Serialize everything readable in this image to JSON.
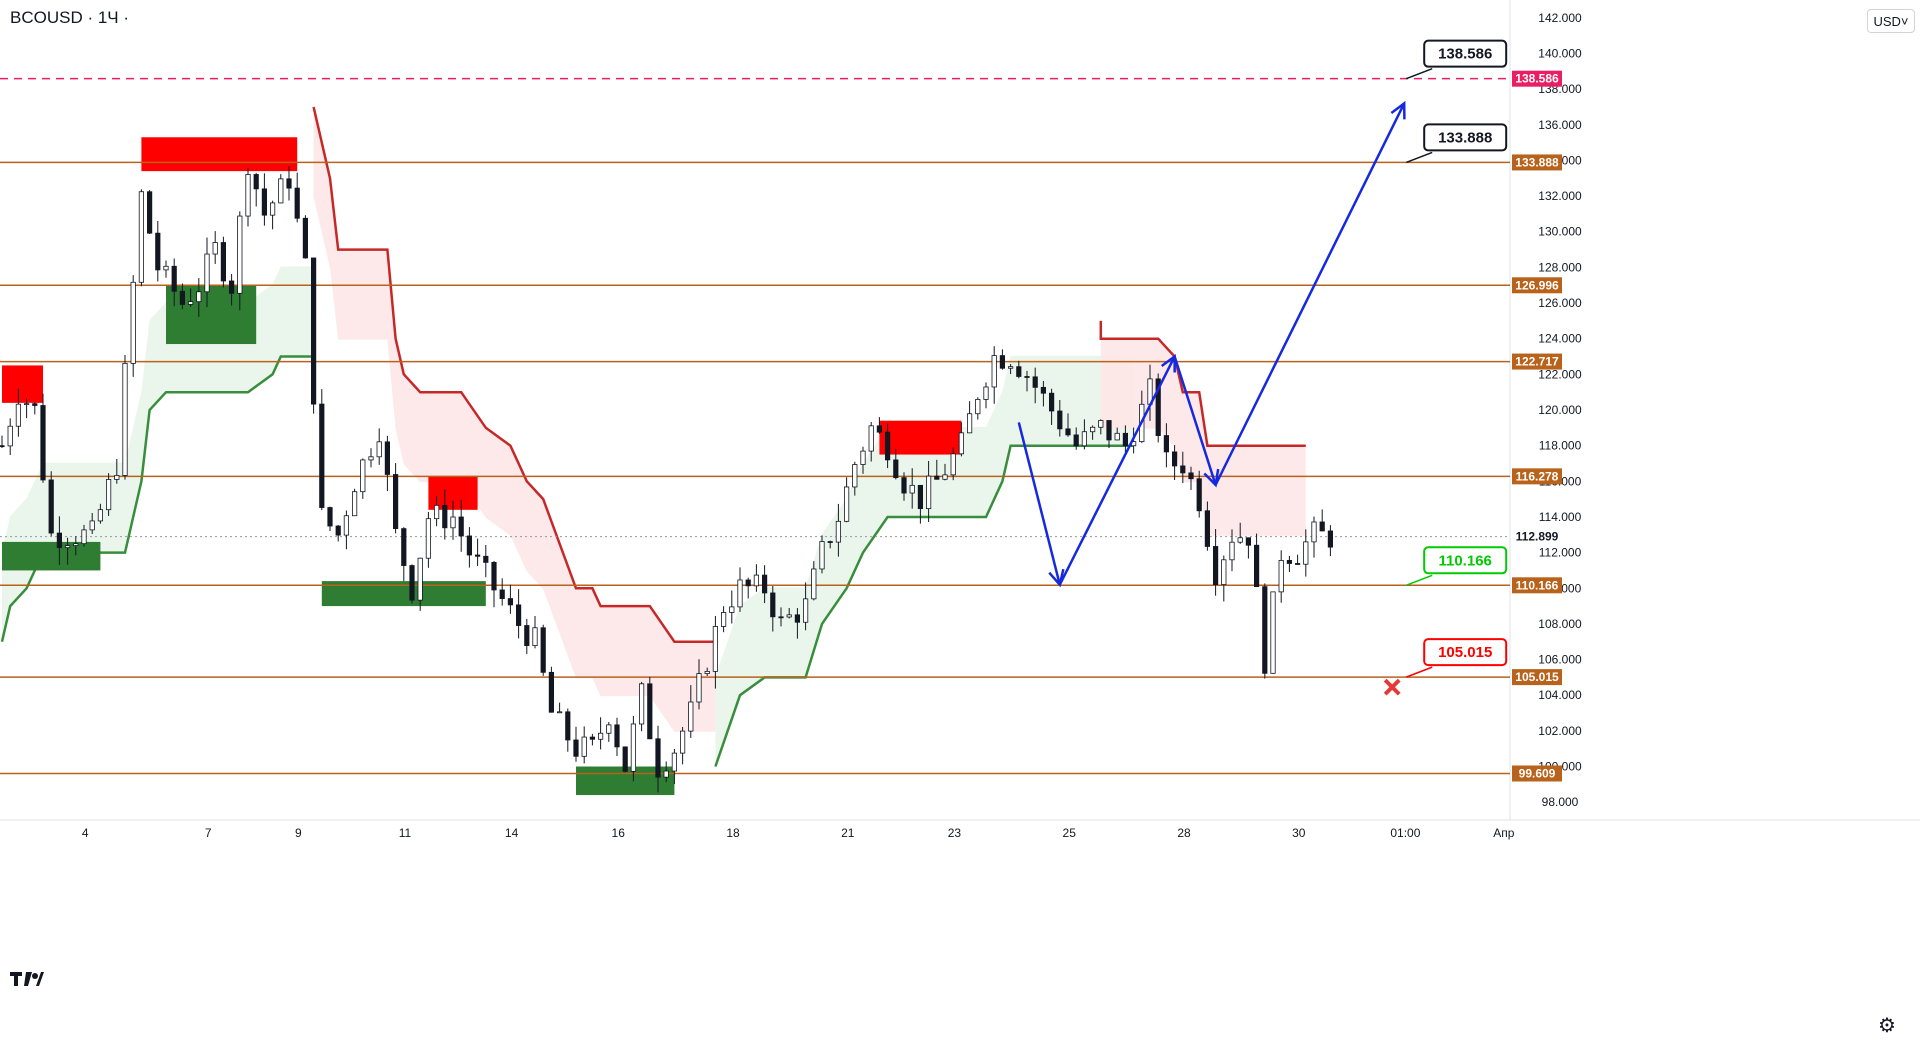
{
  "header": {
    "symbol_title": "BCOUSD · 1Ч ·",
    "currency_label": "USD˅"
  },
  "footer": {
    "settings_icon": "gear-icon",
    "logo_icon": "tradingview-logo-icon"
  },
  "chart_data": {
    "type": "candlestick",
    "symbol": "BCOUSD",
    "interval": "1Ч",
    "ylim": [
      97,
      143
    ],
    "y_ticks": [
      98,
      100,
      102,
      104,
      106,
      108,
      110,
      112,
      114,
      116,
      118,
      120,
      122,
      124,
      126,
      128,
      130,
      132,
      134,
      136,
      138,
      140,
      142
    ],
    "x_ticks": [
      "4",
      "7",
      "9",
      "11",
      "14",
      "16",
      "18",
      "21",
      "23",
      "25",
      "28",
      "30",
      "01:00",
      "Апр"
    ],
    "x_tick_index": [
      11,
      26,
      37,
      50,
      63,
      76,
      90,
      104,
      117,
      131,
      145,
      159,
      172,
      184
    ],
    "bar_count": 180,
    "last_price": "112.899",
    "last_price_value": 112.899,
    "horizontal_levels": [
      {
        "value": 99.609,
        "label": "99.609"
      },
      {
        "value": 105.015,
        "label": "105.015"
      },
      {
        "value": 110.166,
        "label": "110.166"
      },
      {
        "value": 116.278,
        "label": "116.278"
      },
      {
        "value": 122.717,
        "label": "122.717"
      },
      {
        "value": 126.996,
        "label": "126.996"
      },
      {
        "value": 133.888,
        "label": "133.888"
      }
    ],
    "resistance_target": {
      "value": 138.586,
      "label": "138.586"
    },
    "callouts": [
      {
        "label": "138.586",
        "value": 138.586,
        "color": "#131722",
        "x_index": 171
      },
      {
        "label": "133.888",
        "value": 133.888,
        "color": "#131722",
        "x_index": 171
      },
      {
        "label": "110.166",
        "value": 110.166,
        "color": "#00cc00",
        "x_index": 171
      },
      {
        "label": "105.015",
        "value": 105.015,
        "color": "#ff0000",
        "x_index": 171
      }
    ],
    "forecast_path": [
      {
        "x_index": 124,
        "value": 119.3
      },
      {
        "x_index": 129,
        "value": 110.2
      },
      {
        "x_index": 143,
        "value": 123.0
      },
      {
        "x_index": 148,
        "value": 115.8
      },
      {
        "x_index": 171,
        "value": 137.2
      }
    ],
    "zones": [
      {
        "type": "supply",
        "x0": 0,
        "x1": 5,
        "y0": 120.4,
        "y1": 122.5
      },
      {
        "type": "demand",
        "x0": 0,
        "x1": 12,
        "y0": 111.0,
        "y1": 112.6
      },
      {
        "type": "supply",
        "x0": 17,
        "x1": 36,
        "y0": 133.4,
        "y1": 135.3
      },
      {
        "type": "demand",
        "x0": 20,
        "x1": 31,
        "y0": 123.7,
        "y1": 127.0
      },
      {
        "type": "supply",
        "x0": 52,
        "x1": 58,
        "y0": 114.4,
        "y1": 116.3
      },
      {
        "type": "demand",
        "x0": 39,
        "x1": 59,
        "y0": 109.0,
        "y1": 110.4
      },
      {
        "type": "demand",
        "x0": 70,
        "x1": 82,
        "y0": 98.4,
        "y1": 100.0
      },
      {
        "type": "supply",
        "x0": 107,
        "x1": 117,
        "y0": 117.5,
        "y1": 119.4
      }
    ],
    "trend_stops": [
      {
        "color": "#388e3c",
        "fill": "#e8f5e9",
        "points": [
          [
            0,
            107
          ],
          [
            1,
            109
          ],
          [
            3,
            110
          ],
          [
            5,
            112
          ],
          [
            8,
            112
          ],
          [
            12,
            112
          ],
          [
            15,
            112
          ],
          [
            17,
            116
          ],
          [
            18,
            120
          ],
          [
            20,
            121
          ],
          [
            24,
            121
          ],
          [
            28,
            121
          ],
          [
            30,
            121
          ],
          [
            33,
            122
          ],
          [
            34,
            123
          ],
          [
            38,
            123
          ]
        ]
      },
      {
        "color": "#c62828",
        "fill": "#fde7e7",
        "points": [
          [
            38,
            137
          ],
          [
            40,
            133
          ],
          [
            41,
            129
          ],
          [
            43,
            129
          ],
          [
            47,
            129
          ],
          [
            48,
            124
          ],
          [
            49,
            122
          ],
          [
            51,
            121
          ],
          [
            56,
            121
          ],
          [
            59,
            119
          ],
          [
            62,
            118
          ],
          [
            64,
            116
          ],
          [
            66,
            115
          ],
          [
            70,
            110
          ],
          [
            72,
            110
          ],
          [
            73,
            109
          ],
          [
            79,
            109
          ],
          [
            82,
            107
          ],
          [
            87,
            107
          ]
        ]
      },
      {
        "color": "#388e3c",
        "fill": "#e8f5e9",
        "points": [
          [
            87,
            100
          ],
          [
            90,
            104
          ],
          [
            93,
            105
          ],
          [
            98,
            105
          ],
          [
            100,
            108
          ],
          [
            103,
            110
          ],
          [
            105,
            112
          ],
          [
            108,
            114
          ],
          [
            112,
            114
          ],
          [
            115,
            114
          ],
          [
            120,
            114
          ],
          [
            122,
            116
          ],
          [
            123,
            118
          ],
          [
            138,
            118
          ]
        ]
      },
      {
        "color": "#c62828",
        "fill": "#fde7e7",
        "points": [
          [
            134,
            125
          ],
          [
            134,
            124
          ],
          [
            141,
            124
          ],
          [
            143,
            123
          ],
          [
            144,
            121
          ],
          [
            146,
            121
          ],
          [
            147,
            118
          ],
          [
            159,
            118
          ]
        ]
      }
    ],
    "candles_seed": 7,
    "price_anchors": [
      [
        0,
        118
      ],
      [
        2,
        121
      ],
      [
        4,
        120
      ],
      [
        6,
        113
      ],
      [
        8,
        113
      ],
      [
        11,
        113
      ],
      [
        14,
        117
      ],
      [
        17,
        132
      ],
      [
        19,
        128
      ],
      [
        22,
        126
      ],
      [
        24,
        127
      ],
      [
        26,
        129
      ],
      [
        28,
        127
      ],
      [
        30,
        134
      ],
      [
        32,
        131
      ],
      [
        35,
        133
      ],
      [
        37,
        128
      ],
      [
        39,
        114
      ],
      [
        41,
        113
      ],
      [
        43,
        116
      ],
      [
        46,
        119
      ],
      [
        48,
        113
      ],
      [
        50,
        110
      ],
      [
        52,
        114
      ],
      [
        55,
        114
      ],
      [
        57,
        112
      ],
      [
        60,
        110
      ],
      [
        63,
        108
      ],
      [
        65,
        107
      ],
      [
        67,
        103
      ],
      [
        70,
        101
      ],
      [
        72,
        101
      ],
      [
        74,
        103
      ],
      [
        76,
        100
      ],
      [
        78,
        104
      ],
      [
        80,
        100
      ],
      [
        82,
        101
      ],
      [
        84,
        103
      ],
      [
        86,
        106
      ],
      [
        88,
        109
      ],
      [
        90,
        110
      ],
      [
        93,
        110
      ],
      [
        95,
        108
      ],
      [
        98,
        109
      ],
      [
        100,
        112
      ],
      [
        102,
        114
      ],
      [
        104,
        117
      ],
      [
        106,
        119
      ],
      [
        108,
        118
      ],
      [
        110,
        116
      ],
      [
        112,
        115
      ],
      [
        114,
        116
      ],
      [
        117,
        118
      ],
      [
        119,
        121
      ],
      [
        121,
        123
      ],
      [
        123,
        123
      ],
      [
        125,
        122
      ],
      [
        128,
        120
      ],
      [
        131,
        118
      ],
      [
        134,
        119
      ],
      [
        137,
        118
      ],
      [
        140,
        121
      ],
      [
        142,
        117
      ],
      [
        144,
        117
      ],
      [
        146,
        115
      ],
      [
        148,
        111
      ],
      [
        150,
        113
      ],
      [
        152,
        113
      ],
      [
        154,
        106
      ],
      [
        156,
        112
      ],
      [
        158,
        112
      ],
      [
        160,
        113
      ],
      [
        162,
        112.9
      ]
    ]
  }
}
